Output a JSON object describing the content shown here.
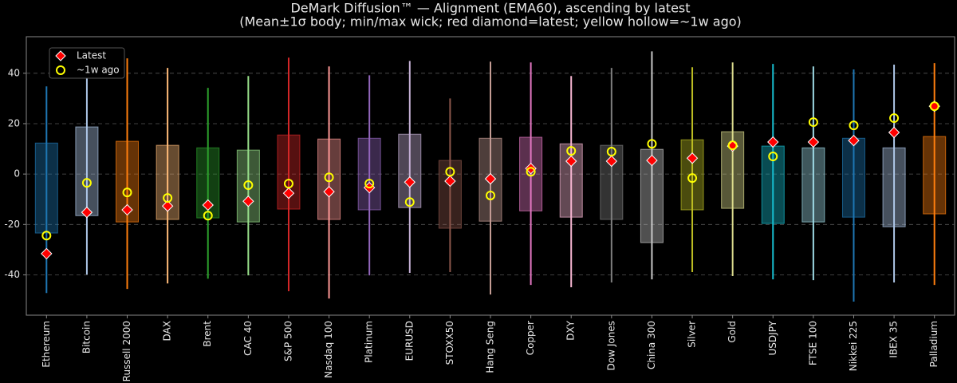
{
  "chart_data": {
    "type": "range",
    "title": "DeMark Diffusion™ — Alignment (EMA60), ascending by latest",
    "subtitle": "(Mean±1σ body; min/max wick; red diamond=latest; yellow hollow=~1w ago)",
    "categories": [
      "Ethereum",
      "Bitcoin",
      "Russell 2000",
      "DAX",
      "Brent",
      "CAC 40",
      "S&P 500",
      "Nasdaq 100",
      "Platinum",
      "EURUSD",
      "STOXX50",
      "Hang Seng",
      "Copper",
      "DXY",
      "Dow Jones",
      "China 300",
      "Silver",
      "Gold",
      "USDJPY",
      "FTSE 100",
      "Nikkei 225",
      "IBEX 35",
      "Palladium"
    ],
    "colors": [
      "#1f77b4",
      "#aec7e8",
      "#ff7f0e",
      "#ffbb78",
      "#2ca02c",
      "#98df8a",
      "#d62728",
      "#ff9896",
      "#9467bd",
      "#c5b0d5",
      "#8c564b",
      "#c49c94",
      "#e377c2",
      "#f7b6d2",
      "#7f7f7f",
      "#c7c7c7",
      "#bcbd22",
      "#dbdb8d",
      "#17becf",
      "#9edae5",
      "#1f77b4",
      "#aec7e8",
      "#ff7f0e"
    ],
    "body_low": [
      -23.4,
      -16.5,
      -19,
      -18,
      -17.4,
      -19,
      -13.9,
      -18,
      -14.2,
      -13.3,
      -21.5,
      -18.7,
      -14.6,
      -17.1,
      -18,
      -27.2,
      -14.2,
      -13.6,
      -19.6,
      -19,
      -17.1,
      -20.9,
      -15.8
    ],
    "body_high": [
      12.3,
      18.7,
      13,
      11.4,
      10.4,
      9.5,
      15.5,
      13.9,
      14.2,
      15.8,
      5.4,
      14.2,
      14.6,
      12,
      11.4,
      9.8,
      13.6,
      16.8,
      11.1,
      10.4,
      14.2,
      10.4,
      14.9
    ],
    "wick_low": [
      -47.2,
      -39.9,
      -45.6,
      -43.4,
      -41.5,
      -40.2,
      -46.5,
      -49.4,
      -40.2,
      -39.2,
      -38.9,
      -47.8,
      -44,
      -44.9,
      -43,
      -41.8,
      -38.9,
      -40.5,
      -41.8,
      -42.1,
      -50.6,
      -43,
      -44
    ],
    "wick_high": [
      34.8,
      44.3,
      45.9,
      42.1,
      34.2,
      38.9,
      46.2,
      42.7,
      39.2,
      44.9,
      30,
      44.6,
      44.3,
      38.9,
      42.1,
      48.7,
      42.4,
      44.3,
      43.7,
      42.7,
      41.5,
      43.4,
      44
    ],
    "series": [
      {
        "name": "Latest",
        "color": "#ff0000",
        "values": [
          -31.6,
          -15.2,
          -14.2,
          -12.7,
          -12.3,
          -10.8,
          -7.6,
          -7,
          -5.4,
          -3.2,
          -2.8,
          -1.9,
          2.2,
          5.1,
          5.1,
          5.4,
          6.3,
          11.1,
          12.7,
          12.7,
          13.3,
          16.5,
          26.9
        ]
      },
      {
        "name": "~1w ago",
        "color": "#ffff00",
        "values": [
          -24.4,
          -3.5,
          -7.3,
          -9.5,
          -16.5,
          -4.4,
          -3.8,
          -1.3,
          -3.8,
          -11.1,
          0.9,
          -8.5,
          0.9,
          9.2,
          8.9,
          12,
          -1.6,
          11.4,
          7,
          20.6,
          19.3,
          22.2,
          26.9
        ]
      }
    ],
    "ylim": [
      -56,
      54.5
    ],
    "yticks": [
      -40,
      -20,
      0,
      20,
      40
    ],
    "grid": true,
    "legend": "upper left"
  }
}
